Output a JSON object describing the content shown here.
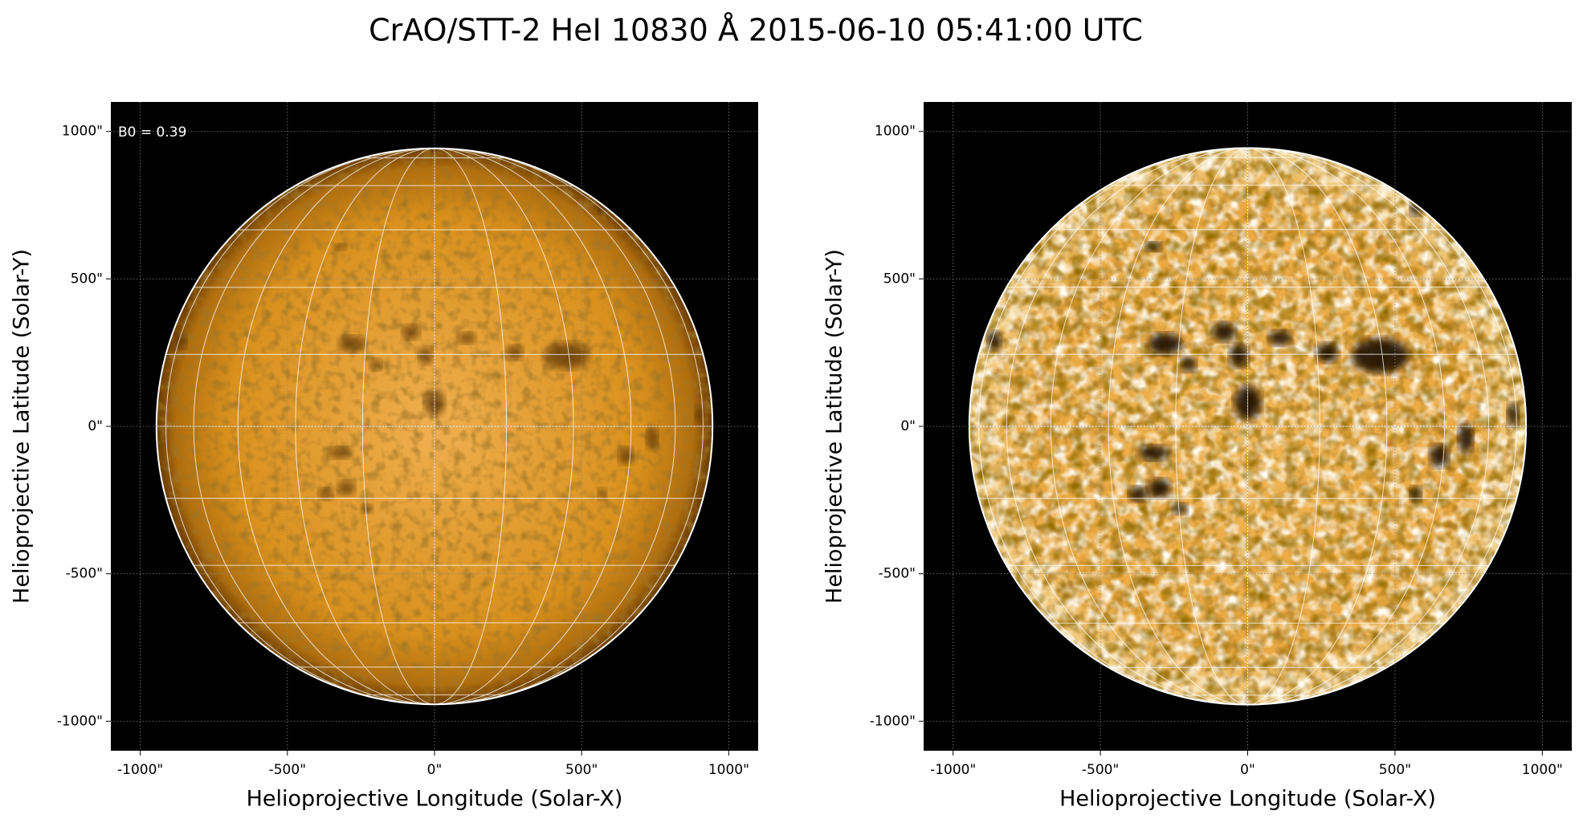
{
  "title": "CrAO/STT-2 HeI 10830 Å 2015-06-10 05:41:00 UTC",
  "chart_data": [
    {
      "type": "image",
      "xlabel": "Helioprojective Longitude (Solar-X)",
      "ylabel": "Helioprojective Latitude (Solar-Y)",
      "annotation": "B0 = 0.39",
      "xlim": [
        -1100,
        1100
      ],
      "ylim": [
        -1100,
        1100
      ],
      "disk_radius": 945,
      "grid": true,
      "contrast": "normal",
      "xticks": [
        {
          "value": -1000,
          "label": "-1000\""
        },
        {
          "value": -500,
          "label": "-500\""
        },
        {
          "value": 0,
          "label": "0\""
        },
        {
          "value": 500,
          "label": "500\""
        },
        {
          "value": 1000,
          "label": "1000\""
        }
      ],
      "yticks": [
        {
          "value": -1000,
          "label": "-1000\""
        },
        {
          "value": -500,
          "label": "-500\""
        },
        {
          "value": 0,
          "label": "0\""
        },
        {
          "value": 500,
          "label": "500\""
        },
        {
          "value": 1000,
          "label": "1000\""
        }
      ]
    },
    {
      "type": "image",
      "xlabel": "Helioprojective Longitude (Solar-X)",
      "ylabel": "Helioprojective Latitude (Solar-Y)",
      "xlim": [
        -1100,
        1100
      ],
      "ylim": [
        -1100,
        1100
      ],
      "disk_radius": 945,
      "grid": true,
      "contrast": "enhanced",
      "xticks": [
        {
          "value": -1000,
          "label": "-1000\""
        },
        {
          "value": -500,
          "label": "-500\""
        },
        {
          "value": 0,
          "label": "0\""
        },
        {
          "value": 500,
          "label": "500\""
        },
        {
          "value": 1000,
          "label": "1000\""
        }
      ],
      "yticks": [
        {
          "value": -1000,
          "label": "-1000\""
        },
        {
          "value": -500,
          "label": "-500\""
        },
        {
          "value": 0,
          "label": "0\""
        },
        {
          "value": 500,
          "label": "500\""
        },
        {
          "value": 1000,
          "label": "1000\""
        }
      ]
    }
  ]
}
